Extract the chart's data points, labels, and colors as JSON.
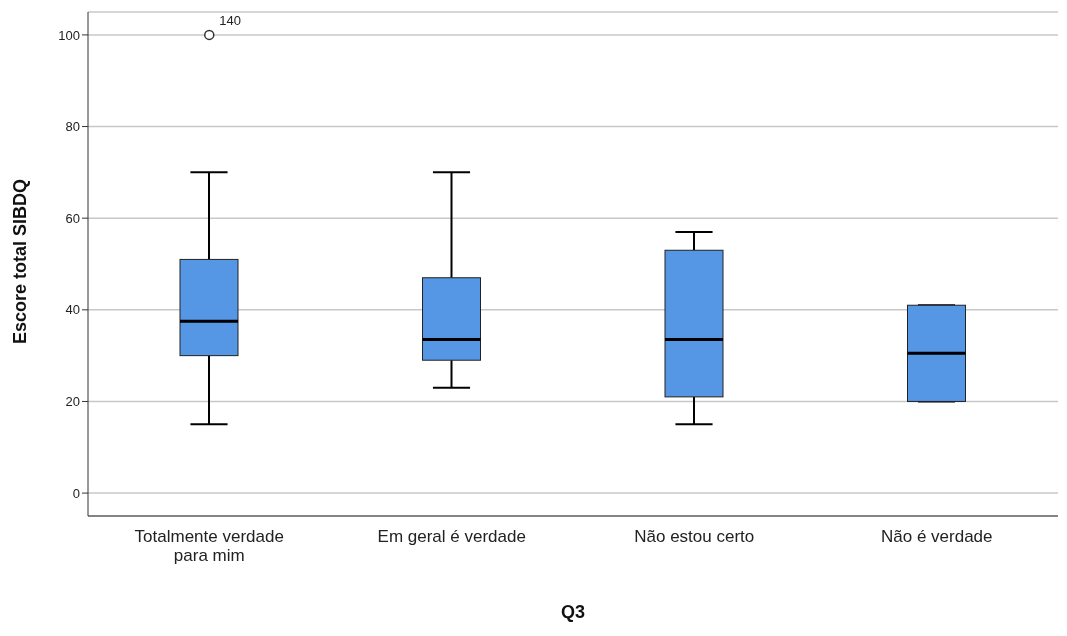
{
  "chart_data": {
    "type": "box",
    "xlabel": "Q3",
    "ylabel": "Escore total SIBDQ",
    "categories": [
      "Totalmente verdade para mim",
      "Em geral é verdade",
      "Não estou certo",
      "Não é verdade"
    ],
    "boxes": [
      {
        "low": 15,
        "q1": 30,
        "median": 37.5,
        "q3": 51,
        "high": 70,
        "outliers": [
          100
        ]
      },
      {
        "low": 23,
        "q1": 29,
        "median": 33.5,
        "q3": 47,
        "high": 70
      },
      {
        "low": 15,
        "q1": 21,
        "median": 33.5,
        "q3": 53,
        "high": 57
      },
      {
        "low": 20,
        "q1": 20,
        "median": 30.5,
        "q3": 41,
        "high": 41
      }
    ],
    "color": "#5596e5",
    "ylim": [
      -5,
      105
    ],
    "yticks": [
      0,
      20,
      40,
      60,
      80,
      100
    ],
    "grid": "y",
    "annotations": [
      "140"
    ]
  }
}
